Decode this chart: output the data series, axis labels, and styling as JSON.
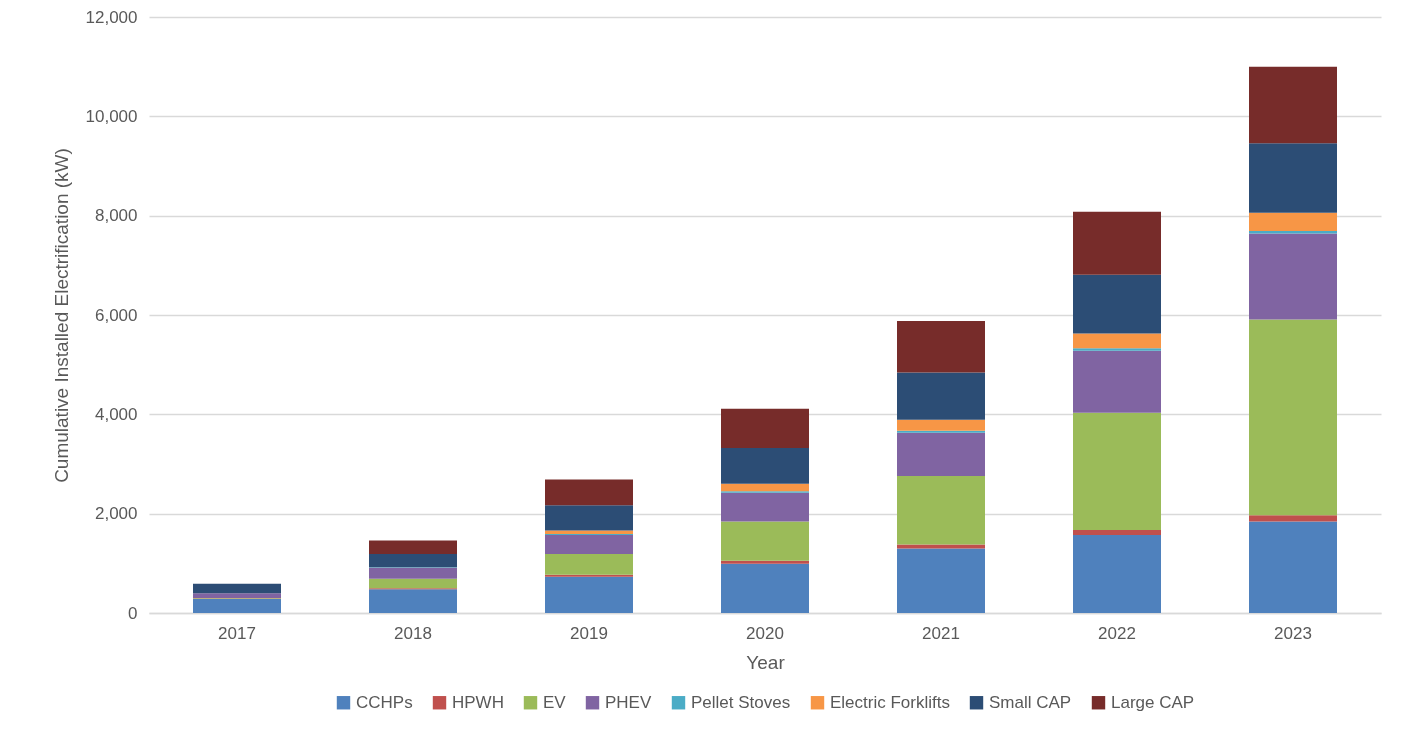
{
  "chart_data": {
    "type": "bar",
    "stacked": true,
    "xlabel": "Year",
    "ylabel": "Cumulative Installed Electrification (kW)",
    "categories": [
      "2017",
      "2018",
      "2019",
      "2020",
      "2021",
      "2022",
      "2023"
    ],
    "series": [
      {
        "name": "CCHPs",
        "color": "#4f81bd",
        "values": [
          280,
          480,
          730,
          990,
          1300,
          1570,
          1840
        ]
      },
      {
        "name": "HPWH",
        "color": "#c0504d",
        "values": [
          10,
          20,
          40,
          60,
          80,
          100,
          130
        ]
      },
      {
        "name": "EV",
        "color": "#9bbb59",
        "values": [
          10,
          190,
          420,
          790,
          1380,
          2360,
          3940
        ]
      },
      {
        "name": "PHEV",
        "color": "#8064a2",
        "values": [
          100,
          220,
          380,
          580,
          870,
          1250,
          1730
        ]
      },
      {
        "name": "Pellet Stoves",
        "color": "#4bacc6",
        "values": [
          null,
          10,
          20,
          30,
          40,
          50,
          50
        ]
      },
      {
        "name": "Electric Forklifts",
        "color": "#f79646",
        "values": [
          0,
          0,
          70,
          150,
          220,
          300,
          370
        ]
      },
      {
        "name": "Small CAP",
        "color": "#2c4d75",
        "values": [
          190,
          270,
          510,
          720,
          950,
          1180,
          1400
        ]
      },
      {
        "name": "Large CAP",
        "color": "#772c2a",
        "values": [
          0,
          270,
          520,
          790,
          1040,
          1270,
          1540
        ]
      }
    ],
    "ylim": [
      0,
      12000
    ],
    "yticks": [
      0,
      {
        "value": 2000,
        "label": "2,000"
      },
      {
        "value": 4000,
        "label": "4,000"
      },
      {
        "value": 6000,
        "label": "6,000"
      },
      {
        "value": 8000,
        "label": "8,000"
      },
      {
        "value": 10000,
        "label": "10,000"
      },
      {
        "value": 12000,
        "label": "12,000"
      }
    ],
    "grid": "y",
    "legend": "bottom"
  }
}
